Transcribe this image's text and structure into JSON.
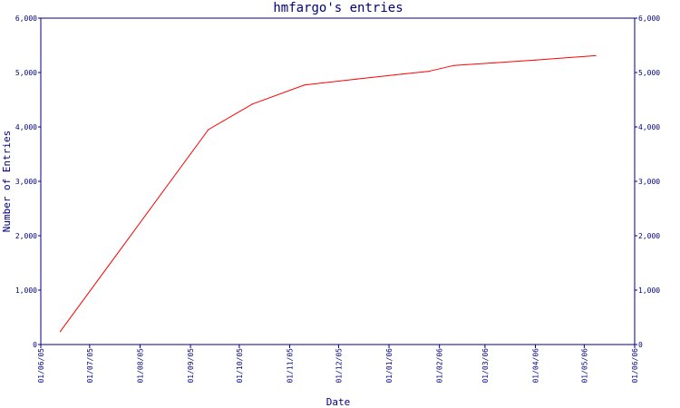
{
  "chart_data": {
    "type": "line",
    "title": "hmfargo's entries",
    "xlabel": "Date",
    "ylabel": "Number of Entries",
    "ylim": [
      0,
      6000
    ],
    "y_ticks": [
      0,
      1000,
      2000,
      3000,
      4000,
      5000,
      6000
    ],
    "y_tick_labels": [
      "0",
      "1,000",
      "2,000",
      "3,000",
      "4,000",
      "5,000",
      "6,000"
    ],
    "x_ticks": [
      "2005-06-01",
      "2005-07-01",
      "2005-08-01",
      "2005-09-01",
      "2005-10-01",
      "2005-11-01",
      "2005-12-01",
      "2006-01-01",
      "2006-02-01",
      "2006-03-01",
      "2006-04-01",
      "2006-05-01",
      "2006-06-01"
    ],
    "x_tick_labels": [
      "01/06/05",
      "01/07/05",
      "01/08/05",
      "01/09/05",
      "01/10/05",
      "01/11/05",
      "01/12/05",
      "01/01/06",
      "01/02/06",
      "01/03/06",
      "01/04/06",
      "01/05/06",
      "01/06/06"
    ],
    "xlim": [
      "2005-06-01",
      "2006-06-01"
    ],
    "grid": false,
    "secondary_y_axis": true,
    "line_color": "#ff0000",
    "axis_color": "#000080",
    "series": [
      {
        "x": [
          "2005-06-13",
          "2005-09-12",
          "2005-10-09",
          "2005-11-10",
          "2005-12-12",
          "2006-01-09",
          "2006-01-25",
          "2006-02-10",
          "2006-03-07",
          "2006-04-01",
          "2006-05-08"
        ],
        "y": [
          240,
          3950,
          4420,
          4770,
          4880,
          4970,
          5020,
          5130,
          5180,
          5230,
          5310
        ]
      }
    ]
  }
}
